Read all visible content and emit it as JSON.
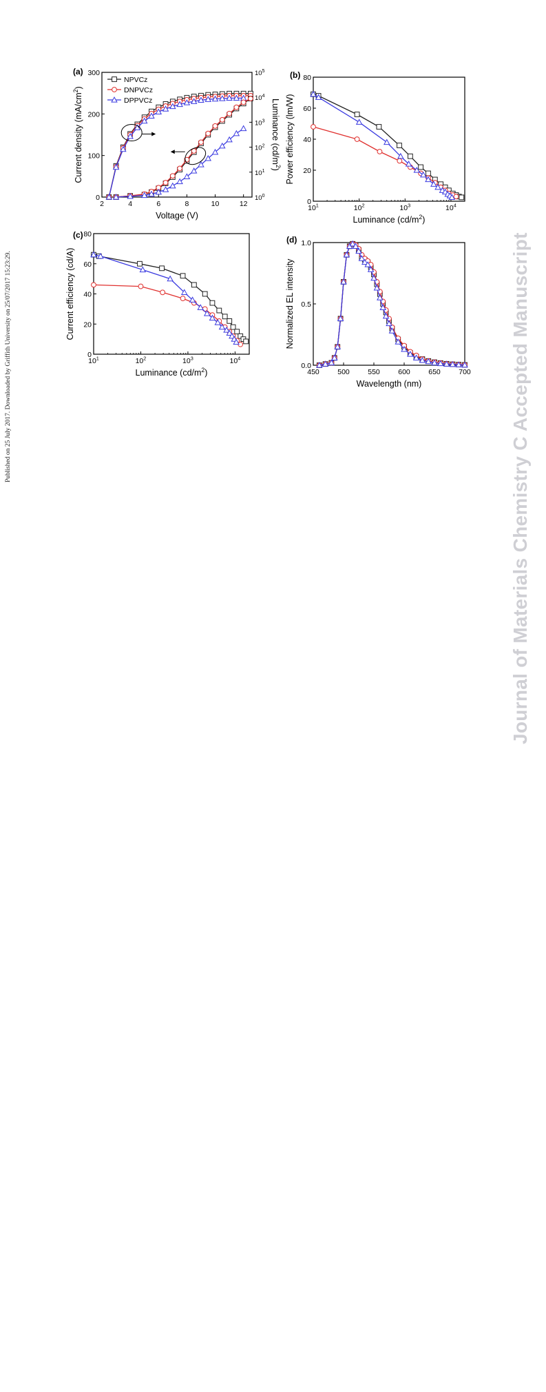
{
  "side_note": "Published on 25 July 2017. Downloaded by Griffith University on 25/07/2017 15:23:29.",
  "watermark": "Journal of Materials Chemistry C Accepted Manuscript",
  "series_styles": [
    {
      "name": "NPVCz",
      "color": "#222222",
      "marker": "square"
    },
    {
      "name": "DNPVCz",
      "color": "#e0302e",
      "marker": "circle"
    },
    {
      "name": "DPPVCz",
      "color": "#3a3ae0",
      "marker": "triangle"
    }
  ],
  "chart_data": [
    {
      "panel": "(a)",
      "type": "line",
      "xlabel": "Voltage (V)",
      "ylabel": "Current density (mA/cm²)",
      "y2label": "Luminance (cd/m²)",
      "xlim": [
        2,
        12.6
      ],
      "ylim": [
        0,
        300
      ],
      "y2lim_log10": [
        0,
        5
      ],
      "xticks": [
        "2",
        "4",
        "6",
        "8",
        "10",
        "12"
      ],
      "yticks": [
        "0",
        "100",
        "200",
        "300"
      ],
      "legend": [
        "NPVCz",
        "DNPVCz",
        "DPPVCz"
      ],
      "legend_position": "top-left",
      "annotations": [
        "ellipse with arrow to right axis around current density curves near 4 V",
        "ellipse with arrow to left axis around luminance curves near 8.5 V"
      ],
      "current_density": [
        {
          "name": "NPVCz",
          "x": [
            2.5,
            3,
            3.5,
            4,
            4.5,
            5,
            5.5,
            6,
            6.5,
            7,
            7.5,
            8,
            8.5,
            9,
            9.5,
            10,
            10.5,
            11,
            11.5,
            12,
            12.5
          ],
          "y": [
            0,
            75,
            120,
            152,
            175,
            192,
            206,
            216,
            224,
            230,
            235,
            239,
            242,
            244,
            246,
            247,
            248,
            249,
            249,
            249,
            249
          ]
        },
        {
          "name": "DNPVCz",
          "x": [
            2.5,
            3,
            3.5,
            4,
            4.5,
            5,
            5.5,
            6,
            6.5,
            7,
            7.5,
            8,
            8.5,
            9,
            9.5,
            10,
            10.5,
            11,
            11.5,
            12,
            12.5
          ],
          "y": [
            0,
            73,
            118,
            150,
            172,
            188,
            201,
            211,
            219,
            225,
            230,
            234,
            237,
            239,
            241,
            242,
            243,
            244,
            244,
            244,
            244
          ]
        },
        {
          "name": "DPPVCz",
          "x": [
            2.5,
            3,
            3.5,
            4,
            4.5,
            5,
            5.5,
            6,
            6.5,
            7,
            7.5,
            8,
            8.5,
            9,
            9.5,
            10,
            10.5,
            11,
            11.5,
            12
          ],
          "y": [
            0,
            72,
            115,
            146,
            167,
            183,
            195,
            205,
            212,
            218,
            223,
            227,
            230,
            233,
            235,
            236,
            237,
            238,
            238,
            238
          ]
        }
      ],
      "luminance_log10": [
        {
          "name": "NPVCz",
          "x": [
            3,
            4,
            5,
            5.5,
            6,
            6.5,
            7,
            7.5,
            8,
            8.5,
            9,
            9.5,
            10,
            10.5,
            11,
            11.5,
            12,
            12.5
          ],
          "y": [
            0.0,
            0.05,
            0.1,
            0.2,
            0.35,
            0.55,
            0.8,
            1.1,
            1.45,
            1.8,
            2.15,
            2.5,
            2.8,
            3.05,
            3.3,
            3.55,
            3.75,
            3.95
          ]
        },
        {
          "name": "DNPVCz",
          "x": [
            3,
            4,
            5,
            5.5,
            6,
            6.5,
            7,
            7.5,
            8,
            8.5,
            9,
            9.5,
            10,
            10.5,
            11,
            11.5,
            12,
            12.5
          ],
          "y": [
            0.0,
            0.05,
            0.12,
            0.22,
            0.38,
            0.58,
            0.85,
            1.15,
            1.5,
            1.85,
            2.2,
            2.55,
            2.85,
            3.1,
            3.35,
            3.6,
            3.8,
            3.95
          ]
        },
        {
          "name": "DPPVCz",
          "x": [
            3,
            4,
            5,
            5.5,
            6,
            6.5,
            7,
            7.5,
            8,
            8.5,
            9,
            9.5,
            10,
            10.5,
            11,
            11.5,
            12
          ],
          "y": [
            0.0,
            0.03,
            0.07,
            0.12,
            0.2,
            0.3,
            0.45,
            0.62,
            0.82,
            1.05,
            1.3,
            1.55,
            1.8,
            2.05,
            2.3,
            2.55,
            2.75
          ]
        }
      ]
    },
    {
      "panel": "(b)",
      "type": "line",
      "xlabel": "Luminance (cd/m²)",
      "ylabel": "Power efficiency (lm/W)",
      "x_scale": "log",
      "xlim": [
        10,
        20000
      ],
      "ylim": [
        0,
        80
      ],
      "xticks": [
        "10¹",
        "10²",
        "10³",
        "10⁴"
      ],
      "yticks": [
        "0",
        "20",
        "40",
        "60",
        "80"
      ],
      "series": [
        {
          "name": "NPVCz",
          "x": [
            10,
            13,
            90,
            270,
            750,
            1300,
            2200,
            3200,
            4500,
            6000,
            7500,
            9000,
            11000,
            13000,
            15000,
            17000
          ],
          "y": [
            69,
            68,
            56,
            48,
            36,
            29,
            22,
            18,
            14,
            11,
            9,
            7,
            5,
            4,
            3,
            2.5
          ]
        },
        {
          "name": "DNPVCz",
          "x": [
            10,
            90,
            280,
            760,
            1300,
            2200,
            3200,
            4500,
            6000,
            7500,
            9000,
            11000,
            13000
          ],
          "y": [
            48,
            40,
            32,
            26,
            22,
            18,
            15,
            12,
            9,
            7,
            5,
            4,
            3
          ]
        },
        {
          "name": "DPPVCz",
          "x": [
            10,
            13,
            100,
            400,
            800,
            1200,
            1800,
            2500,
            3200,
            4200,
            5200,
            6500,
            7500,
            8500,
            9500,
            10500
          ],
          "y": [
            69,
            67,
            51,
            38,
            29,
            24,
            20,
            17,
            14,
            11,
            9,
            7,
            6,
            4.5,
            3.5,
            2.5
          ]
        }
      ]
    },
    {
      "panel": "(c)",
      "type": "line",
      "xlabel": "Luminance (cd/m²)",
      "ylabel": "Current efficiency (cd/A)",
      "x_scale": "log",
      "xlim": [
        10,
        20000
      ],
      "ylim": [
        0,
        80
      ],
      "xticks": [
        "10¹",
        "10²",
        "10³",
        "10⁴"
      ],
      "yticks": [
        "0",
        "20",
        "40",
        "60",
        "80"
      ],
      "series": [
        {
          "name": "NPVCz",
          "x": [
            10,
            13,
            95,
            280,
            780,
            1350,
            2300,
            3300,
            4600,
            6100,
            7600,
            9100,
            11000,
            13000,
            15000,
            17000
          ],
          "y": [
            66,
            65,
            60,
            57,
            52,
            46,
            40,
            34,
            29,
            25,
            22,
            18,
            15,
            12,
            10,
            8.5
          ]
        },
        {
          "name": "DNPVCz",
          "x": [
            10,
            100,
            290,
            780,
            1350,
            2300,
            3300,
            4600,
            6100,
            7600,
            9100,
            11000,
            13000
          ],
          "y": [
            46,
            45,
            41,
            37,
            34,
            30,
            26,
            22,
            18,
            15,
            12,
            9,
            6.5
          ]
        },
        {
          "name": "DPPVCz",
          "x": [
            10,
            14,
            110,
            420,
            840,
            1250,
            1850,
            2550,
            3300,
            4300,
            5300,
            6600,
            7600,
            8600,
            9600,
            10600
          ],
          "y": [
            66,
            65,
            56,
            50,
            41,
            36,
            31,
            27,
            24,
            21,
            18,
            16,
            14,
            12,
            10,
            8
          ]
        }
      ]
    },
    {
      "panel": "(d)",
      "type": "line",
      "xlabel": "Wavelength (nm)",
      "ylabel": "Normalized EL intensity",
      "xlim": [
        450,
        700
      ],
      "ylim": [
        0,
        1.0
      ],
      "xticks": [
        "450",
        "500",
        "550",
        "600",
        "650",
        "700"
      ],
      "yticks": [
        "0.0",
        "0.5",
        "1.0"
      ],
      "series": [
        {
          "name": "NPVCz",
          "x": [
            460,
            470,
            480,
            485,
            490,
            495,
            500,
            505,
            510,
            515,
            520,
            525,
            530,
            535,
            540,
            545,
            550,
            555,
            560,
            565,
            570,
            575,
            580,
            590,
            600,
            610,
            620,
            630,
            640,
            650,
            660,
            670,
            680,
            690,
            700
          ],
          "y": [
            0.0,
            0.01,
            0.02,
            0.06,
            0.15,
            0.38,
            0.68,
            0.9,
            0.97,
            0.99,
            0.98,
            0.94,
            0.88,
            0.86,
            0.84,
            0.8,
            0.74,
            0.66,
            0.58,
            0.5,
            0.43,
            0.36,
            0.3,
            0.21,
            0.15,
            0.1,
            0.07,
            0.05,
            0.035,
            0.025,
            0.018,
            0.012,
            0.008,
            0.005,
            0.003
          ]
        },
        {
          "name": "DNPVCz",
          "x": [
            460,
            470,
            480,
            485,
            490,
            495,
            500,
            505,
            510,
            515,
            520,
            525,
            530,
            535,
            540,
            545,
            550,
            555,
            560,
            565,
            570,
            575,
            580,
            590,
            600,
            610,
            620,
            630,
            640,
            650,
            660,
            670,
            680,
            690,
            700
          ],
          "y": [
            0.0,
            0.01,
            0.02,
            0.06,
            0.15,
            0.38,
            0.68,
            0.9,
            0.97,
            0.99,
            0.98,
            0.95,
            0.9,
            0.87,
            0.85,
            0.82,
            0.76,
            0.68,
            0.6,
            0.52,
            0.45,
            0.38,
            0.31,
            0.22,
            0.16,
            0.11,
            0.08,
            0.05,
            0.035,
            0.025,
            0.018,
            0.012,
            0.008,
            0.005,
            0.003
          ]
        },
        {
          "name": "DPPVCz",
          "x": [
            460,
            470,
            480,
            485,
            490,
            495,
            500,
            505,
            510,
            515,
            520,
            525,
            530,
            535,
            540,
            545,
            550,
            555,
            560,
            565,
            570,
            575,
            580,
            590,
            600,
            610,
            620,
            630,
            640,
            650,
            660,
            670,
            680,
            690,
            700
          ],
          "y": [
            0.0,
            0.01,
            0.02,
            0.06,
            0.15,
            0.38,
            0.68,
            0.9,
            0.97,
            0.99,
            0.97,
            0.93,
            0.87,
            0.84,
            0.82,
            0.78,
            0.71,
            0.63,
            0.55,
            0.47,
            0.4,
            0.34,
            0.28,
            0.19,
            0.13,
            0.09,
            0.06,
            0.04,
            0.03,
            0.02,
            0.014,
            0.01,
            0.007,
            0.004,
            0.002
          ]
        }
      ]
    }
  ]
}
